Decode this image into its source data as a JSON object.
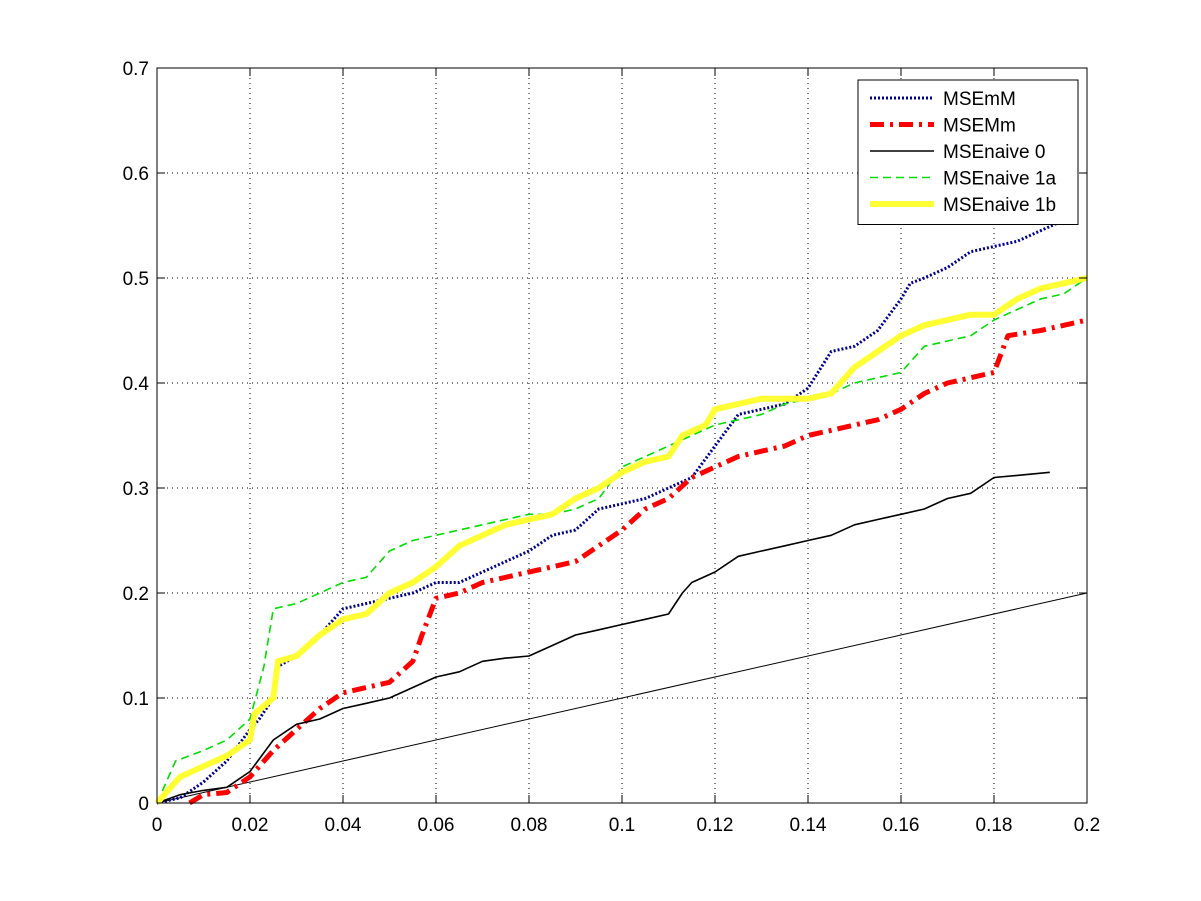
{
  "chart_data": {
    "type": "line",
    "title": "",
    "xlabel": "",
    "ylabel": "",
    "xlim": [
      0,
      0.2
    ],
    "ylim": [
      0,
      0.7
    ],
    "grid": true,
    "legend_position": "top-right",
    "x_ticks": [
      {
        "value": 0,
        "label": "0"
      },
      {
        "value": 0.02,
        "label": "0.02"
      },
      {
        "value": 0.04,
        "label": "0.04"
      },
      {
        "value": 0.06,
        "label": "0.06"
      },
      {
        "value": 0.08,
        "label": "0.08"
      },
      {
        "value": 0.1,
        "label": "0.1"
      },
      {
        "value": 0.12,
        "label": "0.12"
      },
      {
        "value": 0.14,
        "label": "0.14"
      },
      {
        "value": 0.16,
        "label": "0.16"
      },
      {
        "value": 0.18,
        "label": "0.18"
      },
      {
        "value": 0.2,
        "label": "0.2"
      }
    ],
    "y_ticks": [
      {
        "value": 0,
        "label": "0"
      },
      {
        "value": 0.1,
        "label": "0.1"
      },
      {
        "value": 0.2,
        "label": "0.2"
      },
      {
        "value": 0.3,
        "label": "0.3"
      },
      {
        "value": 0.4,
        "label": "0.4"
      },
      {
        "value": 0.5,
        "label": "0.5"
      },
      {
        "value": 0.6,
        "label": "0.6"
      },
      {
        "value": 0.7,
        "label": "0.7"
      }
    ],
    "series": [
      {
        "name": "MSEmM",
        "color": "#00008b",
        "style": "dotted",
        "in_legend": true,
        "points": [
          [
            0,
            0
          ],
          [
            0.005,
            0.005
          ],
          [
            0.01,
            0.02
          ],
          [
            0.015,
            0.04
          ],
          [
            0.02,
            0.07
          ],
          [
            0.022,
            0.08
          ],
          [
            0.025,
            0.1
          ],
          [
            0.026,
            0.13
          ],
          [
            0.03,
            0.14
          ],
          [
            0.035,
            0.16
          ],
          [
            0.04,
            0.185
          ],
          [
            0.045,
            0.19
          ],
          [
            0.05,
            0.195
          ],
          [
            0.055,
            0.2
          ],
          [
            0.06,
            0.21
          ],
          [
            0.065,
            0.21
          ],
          [
            0.07,
            0.22
          ],
          [
            0.075,
            0.23
          ],
          [
            0.08,
            0.24
          ],
          [
            0.085,
            0.255
          ],
          [
            0.09,
            0.26
          ],
          [
            0.095,
            0.28
          ],
          [
            0.1,
            0.285
          ],
          [
            0.105,
            0.29
          ],
          [
            0.11,
            0.3
          ],
          [
            0.115,
            0.31
          ],
          [
            0.12,
            0.34
          ],
          [
            0.125,
            0.37
          ],
          [
            0.13,
            0.375
          ],
          [
            0.135,
            0.38
          ],
          [
            0.14,
            0.395
          ],
          [
            0.145,
            0.43
          ],
          [
            0.15,
            0.435
          ],
          [
            0.155,
            0.45
          ],
          [
            0.16,
            0.48
          ],
          [
            0.162,
            0.495
          ],
          [
            0.165,
            0.5
          ],
          [
            0.17,
            0.51
          ],
          [
            0.175,
            0.525
          ],
          [
            0.18,
            0.53
          ],
          [
            0.185,
            0.535
          ],
          [
            0.19,
            0.545
          ],
          [
            0.195,
            0.555
          ]
        ]
      },
      {
        "name": "MSEMm",
        "color": "#ff0000",
        "style": "dashdot",
        "in_legend": true,
        "points": [
          [
            0.007,
            0
          ],
          [
            0.01,
            0.008
          ],
          [
            0.015,
            0.01
          ],
          [
            0.02,
            0.025
          ],
          [
            0.025,
            0.05
          ],
          [
            0.03,
            0.07
          ],
          [
            0.035,
            0.09
          ],
          [
            0.04,
            0.105
          ],
          [
            0.045,
            0.11
          ],
          [
            0.05,
            0.115
          ],
          [
            0.055,
            0.135
          ],
          [
            0.057,
            0.16
          ],
          [
            0.06,
            0.195
          ],
          [
            0.065,
            0.2
          ],
          [
            0.07,
            0.21
          ],
          [
            0.075,
            0.215
          ],
          [
            0.08,
            0.22
          ],
          [
            0.085,
            0.225
          ],
          [
            0.09,
            0.23
          ],
          [
            0.095,
            0.245
          ],
          [
            0.1,
            0.26
          ],
          [
            0.105,
            0.28
          ],
          [
            0.11,
            0.29
          ],
          [
            0.115,
            0.31
          ],
          [
            0.12,
            0.32
          ],
          [
            0.125,
            0.33
          ],
          [
            0.13,
            0.335
          ],
          [
            0.135,
            0.34
          ],
          [
            0.14,
            0.35
          ],
          [
            0.145,
            0.355
          ],
          [
            0.15,
            0.36
          ],
          [
            0.155,
            0.365
          ],
          [
            0.16,
            0.375
          ],
          [
            0.165,
            0.39
          ],
          [
            0.17,
            0.4
          ],
          [
            0.175,
            0.405
          ],
          [
            0.18,
            0.41
          ],
          [
            0.183,
            0.445
          ],
          [
            0.19,
            0.45
          ],
          [
            0.195,
            0.455
          ],
          [
            0.2,
            0.46
          ]
        ]
      },
      {
        "name": "MSEnaive 0",
        "color": "#000000",
        "style": "solid",
        "in_legend": true,
        "points": [
          [
            0,
            0
          ],
          [
            0.005,
            0.008
          ],
          [
            0.01,
            0.012
          ],
          [
            0.015,
            0.015
          ],
          [
            0.02,
            0.03
          ],
          [
            0.025,
            0.06
          ],
          [
            0.03,
            0.075
          ],
          [
            0.035,
            0.08
          ],
          [
            0.04,
            0.09
          ],
          [
            0.045,
            0.095
          ],
          [
            0.05,
            0.1
          ],
          [
            0.055,
            0.11
          ],
          [
            0.06,
            0.12
          ],
          [
            0.065,
            0.125
          ],
          [
            0.07,
            0.135
          ],
          [
            0.075,
            0.138
          ],
          [
            0.08,
            0.14
          ],
          [
            0.085,
            0.15
          ],
          [
            0.09,
            0.16
          ],
          [
            0.095,
            0.165
          ],
          [
            0.1,
            0.17
          ],
          [
            0.105,
            0.175
          ],
          [
            0.11,
            0.18
          ],
          [
            0.113,
            0.2
          ],
          [
            0.115,
            0.21
          ],
          [
            0.12,
            0.22
          ],
          [
            0.125,
            0.235
          ],
          [
            0.13,
            0.24
          ],
          [
            0.135,
            0.245
          ],
          [
            0.14,
            0.25
          ],
          [
            0.145,
            0.255
          ],
          [
            0.15,
            0.265
          ],
          [
            0.155,
            0.27
          ],
          [
            0.16,
            0.275
          ],
          [
            0.165,
            0.28
          ],
          [
            0.17,
            0.29
          ],
          [
            0.175,
            0.295
          ],
          [
            0.18,
            0.31
          ],
          [
            0.185,
            0.312
          ],
          [
            0.192,
            0.315
          ]
        ]
      },
      {
        "name": "MSEnaive 1a",
        "color": "#00dd00",
        "style": "dashed",
        "in_legend": true,
        "points": [
          [
            0,
            0
          ],
          [
            0.004,
            0.04
          ],
          [
            0.01,
            0.05
          ],
          [
            0.015,
            0.06
          ],
          [
            0.02,
            0.08
          ],
          [
            0.023,
            0.13
          ],
          [
            0.025,
            0.185
          ],
          [
            0.03,
            0.19
          ],
          [
            0.035,
            0.2
          ],
          [
            0.04,
            0.21
          ],
          [
            0.045,
            0.215
          ],
          [
            0.05,
            0.24
          ],
          [
            0.055,
            0.25
          ],
          [
            0.06,
            0.255
          ],
          [
            0.065,
            0.26
          ],
          [
            0.07,
            0.265
          ],
          [
            0.075,
            0.27
          ],
          [
            0.08,
            0.275
          ],
          [
            0.085,
            0.275
          ],
          [
            0.09,
            0.28
          ],
          [
            0.095,
            0.29
          ],
          [
            0.1,
            0.32
          ],
          [
            0.105,
            0.33
          ],
          [
            0.11,
            0.34
          ],
          [
            0.115,
            0.35
          ],
          [
            0.12,
            0.36
          ],
          [
            0.125,
            0.365
          ],
          [
            0.13,
            0.37
          ],
          [
            0.135,
            0.38
          ],
          [
            0.14,
            0.385
          ],
          [
            0.145,
            0.39
          ],
          [
            0.15,
            0.4
          ],
          [
            0.155,
            0.405
          ],
          [
            0.16,
            0.41
          ],
          [
            0.165,
            0.435
          ],
          [
            0.17,
            0.44
          ],
          [
            0.175,
            0.445
          ],
          [
            0.18,
            0.46
          ],
          [
            0.185,
            0.47
          ],
          [
            0.19,
            0.48
          ],
          [
            0.195,
            0.485
          ],
          [
            0.2,
            0.5
          ]
        ]
      },
      {
        "name": "MSEnaive 1b",
        "color": "#ffff33",
        "style": "thick",
        "in_legend": true,
        "points": [
          [
            0,
            0
          ],
          [
            0.003,
            0.015
          ],
          [
            0.005,
            0.025
          ],
          [
            0.01,
            0.035
          ],
          [
            0.015,
            0.045
          ],
          [
            0.02,
            0.06
          ],
          [
            0.021,
            0.085
          ],
          [
            0.025,
            0.1
          ],
          [
            0.026,
            0.135
          ],
          [
            0.03,
            0.14
          ],
          [
            0.035,
            0.16
          ],
          [
            0.04,
            0.175
          ],
          [
            0.045,
            0.18
          ],
          [
            0.05,
            0.2
          ],
          [
            0.055,
            0.21
          ],
          [
            0.06,
            0.225
          ],
          [
            0.065,
            0.245
          ],
          [
            0.07,
            0.255
          ],
          [
            0.075,
            0.265
          ],
          [
            0.08,
            0.27
          ],
          [
            0.085,
            0.275
          ],
          [
            0.09,
            0.29
          ],
          [
            0.095,
            0.3
          ],
          [
            0.1,
            0.315
          ],
          [
            0.105,
            0.325
          ],
          [
            0.11,
            0.33
          ],
          [
            0.113,
            0.35
          ],
          [
            0.118,
            0.36
          ],
          [
            0.12,
            0.375
          ],
          [
            0.125,
            0.38
          ],
          [
            0.13,
            0.385
          ],
          [
            0.135,
            0.385
          ],
          [
            0.14,
            0.385
          ],
          [
            0.145,
            0.39
          ],
          [
            0.15,
            0.415
          ],
          [
            0.155,
            0.43
          ],
          [
            0.16,
            0.445
          ],
          [
            0.165,
            0.455
          ],
          [
            0.17,
            0.46
          ],
          [
            0.175,
            0.465
          ],
          [
            0.18,
            0.465
          ],
          [
            0.185,
            0.48
          ],
          [
            0.19,
            0.49
          ],
          [
            0.195,
            0.495
          ],
          [
            0.2,
            0.5
          ]
        ]
      },
      {
        "name": "",
        "color": "#000000",
        "style": "thin",
        "in_legend": false,
        "points": [
          [
            0,
            0
          ],
          [
            0.2,
            0.2
          ]
        ]
      }
    ]
  }
}
